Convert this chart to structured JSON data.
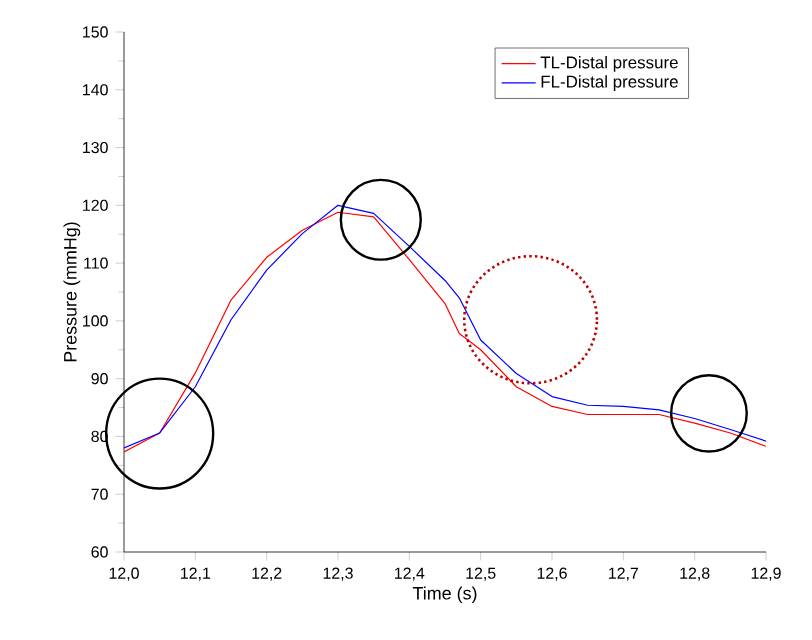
{
  "chart_data": {
    "type": "line",
    "xlabel": "Time (s)",
    "ylabel": "Pressure (mmHg)",
    "x": [
      12.0,
      12.05,
      12.1,
      12.15,
      12.2,
      12.25,
      12.3,
      12.35,
      12.4,
      12.45,
      12.47,
      12.5,
      12.55,
      12.6,
      12.65,
      12.7,
      12.75,
      12.8,
      12.85,
      12.9
    ],
    "series": [
      {
        "name": "TL-Distal pressure",
        "color": "#ff0000",
        "values": [
          77.3,
          80.6,
          91,
          103.6,
          111,
          115.7,
          118.8,
          118,
          110.6,
          103,
          97.8,
          95,
          88.6,
          85.2,
          83.8,
          83.8,
          83.8,
          82.3,
          80.6,
          78.3
        ]
      },
      {
        "name": "FL-Distal pressure",
        "color": "#0000ff",
        "values": [
          78,
          80.6,
          88.6,
          100.2,
          108.8,
          115.1,
          120,
          118.6,
          112.9,
          107,
          104,
          96.7,
          90.9,
          86.9,
          85.4,
          85.2,
          84.6,
          83.1,
          81.2,
          79.2
        ]
      }
    ],
    "xlim": [
      12.0,
      12.9
    ],
    "ylim": [
      60,
      150
    ],
    "xticks": [
      {
        "value": 12.0,
        "label": "12,0"
      },
      {
        "value": 12.1,
        "label": "12,1"
      },
      {
        "value": 12.2,
        "label": "12,2"
      },
      {
        "value": 12.3,
        "label": "12,3"
      },
      {
        "value": 12.4,
        "label": "12,4"
      },
      {
        "value": 12.5,
        "label": "12,5"
      },
      {
        "value": 12.6,
        "label": "12,6"
      },
      {
        "value": 12.7,
        "label": "12,7"
      },
      {
        "value": 12.8,
        "label": "12,8"
      },
      {
        "value": 12.9,
        "label": "12,9"
      }
    ],
    "yticks": [
      60,
      70,
      80,
      90,
      100,
      110,
      120,
      130,
      140,
      150
    ],
    "legend": "top right",
    "grid": false,
    "marker": "none",
    "line_style": "solid"
  }
}
